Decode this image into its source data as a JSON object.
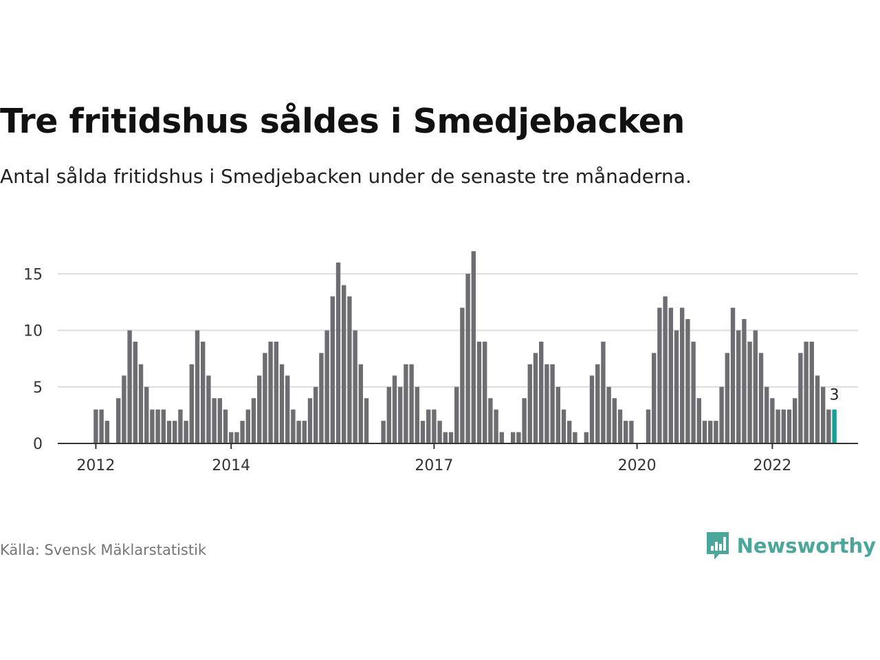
{
  "title": "Tre fritidshus såldes i Smedjebacken",
  "subtitle": "Antal sålda fritidshus i Smedjebacken under de senaste tre månaderna.",
  "source": "Källa: Svensk Mäklarstatistik",
  "brand": {
    "name": "Newsworthy",
    "icon": "newsworthy-logo-icon",
    "color": "#4aa79a"
  },
  "colors": {
    "bar": "#6e6d72",
    "highlight": "#16a096",
    "grid": "#dcdcdc",
    "axis": "#333333"
  },
  "chart_data": {
    "type": "bar",
    "title": "Tre fritidshus såldes i Smedjebacken",
    "xlabel": "",
    "ylabel": "",
    "x_start": "2011-12",
    "x_interval": "month",
    "x_ticks": [
      "2012",
      "2014",
      "2017",
      "2020",
      "2022"
    ],
    "y_ticks": [
      0,
      5,
      10,
      15
    ],
    "ylim": [
      0,
      17
    ],
    "grid": true,
    "legend": "none",
    "highlight_label": "3",
    "values": [
      0,
      3,
      3,
      2,
      0,
      4,
      6,
      10,
      9,
      7,
      5,
      3,
      3,
      3,
      2,
      2,
      3,
      2,
      7,
      10,
      9,
      6,
      4,
      4,
      3,
      1,
      1,
      2,
      3,
      4,
      6,
      8,
      9,
      9,
      7,
      6,
      3,
      2,
      2,
      4,
      5,
      8,
      10,
      13,
      16,
      14,
      13,
      10,
      7,
      4,
      0,
      0,
      2,
      5,
      6,
      5,
      7,
      7,
      5,
      2,
      3,
      3,
      2,
      1,
      1,
      5,
      12,
      15,
      17,
      9,
      9,
      4,
      3,
      1,
      0,
      1,
      1,
      4,
      7,
      8,
      9,
      7,
      7,
      5,
      3,
      2,
      1,
      0,
      1,
      6,
      7,
      9,
      5,
      4,
      3,
      2,
      2,
      0,
      0,
      3,
      8,
      12,
      13,
      12,
      10,
      12,
      11,
      9,
      4,
      2,
      2,
      2,
      5,
      8,
      12,
      10,
      11,
      9,
      10,
      8,
      5,
      4,
      3,
      3,
      3,
      4,
      8,
      9,
      9,
      6,
      5,
      3,
      3
    ]
  }
}
